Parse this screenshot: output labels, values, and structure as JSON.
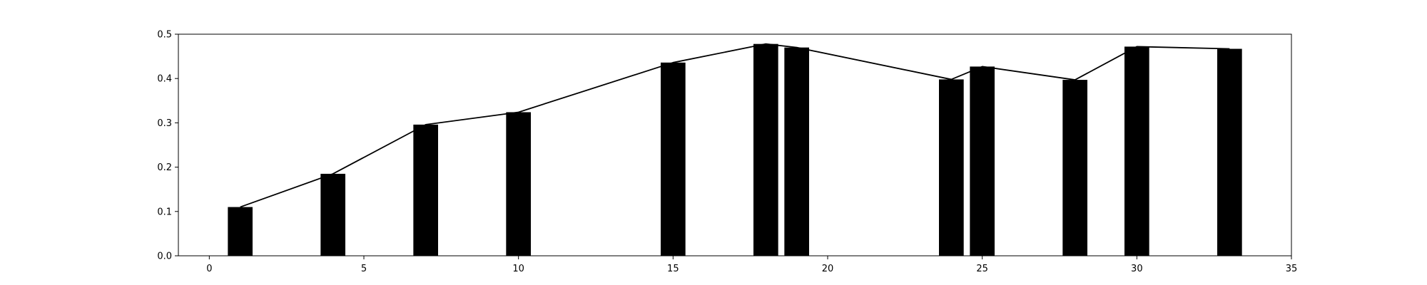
{
  "chart_data": {
    "type": "bar",
    "title": "",
    "xlabel": "",
    "ylabel": "",
    "xlim": [
      -1,
      35
    ],
    "ylim": [
      0,
      0.5
    ],
    "grid": false,
    "x_ticks": [
      0,
      5,
      10,
      15,
      20,
      25,
      30,
      35
    ],
    "x_tick_labels": [
      "0",
      "5",
      "10",
      "15",
      "20",
      "25",
      "30",
      "35"
    ],
    "y_ticks": [
      0.0,
      0.1,
      0.2,
      0.3,
      0.4,
      0.5
    ],
    "y_tick_labels": [
      "0.0",
      "0.1",
      "0.2",
      "0.3",
      "0.4",
      "0.5"
    ],
    "series": [
      {
        "type": "bar",
        "color": "#000000",
        "bar_width": 0.8,
        "x": [
          1,
          4,
          7,
          10,
          15,
          18,
          19,
          24,
          25,
          28,
          30,
          33
        ],
        "values": [
          0.11,
          0.185,
          0.296,
          0.324,
          0.436,
          0.478,
          0.47,
          0.398,
          0.427,
          0.397,
          0.472,
          0.467
        ]
      },
      {
        "type": "line",
        "color": "#000000",
        "x": [
          1,
          4,
          7,
          10,
          15,
          18,
          19,
          24,
          25,
          28,
          30,
          33
        ],
        "values": [
          0.11,
          0.185,
          0.296,
          0.324,
          0.436,
          0.478,
          0.47,
          0.398,
          0.427,
          0.397,
          0.472,
          0.467
        ]
      }
    ]
  }
}
